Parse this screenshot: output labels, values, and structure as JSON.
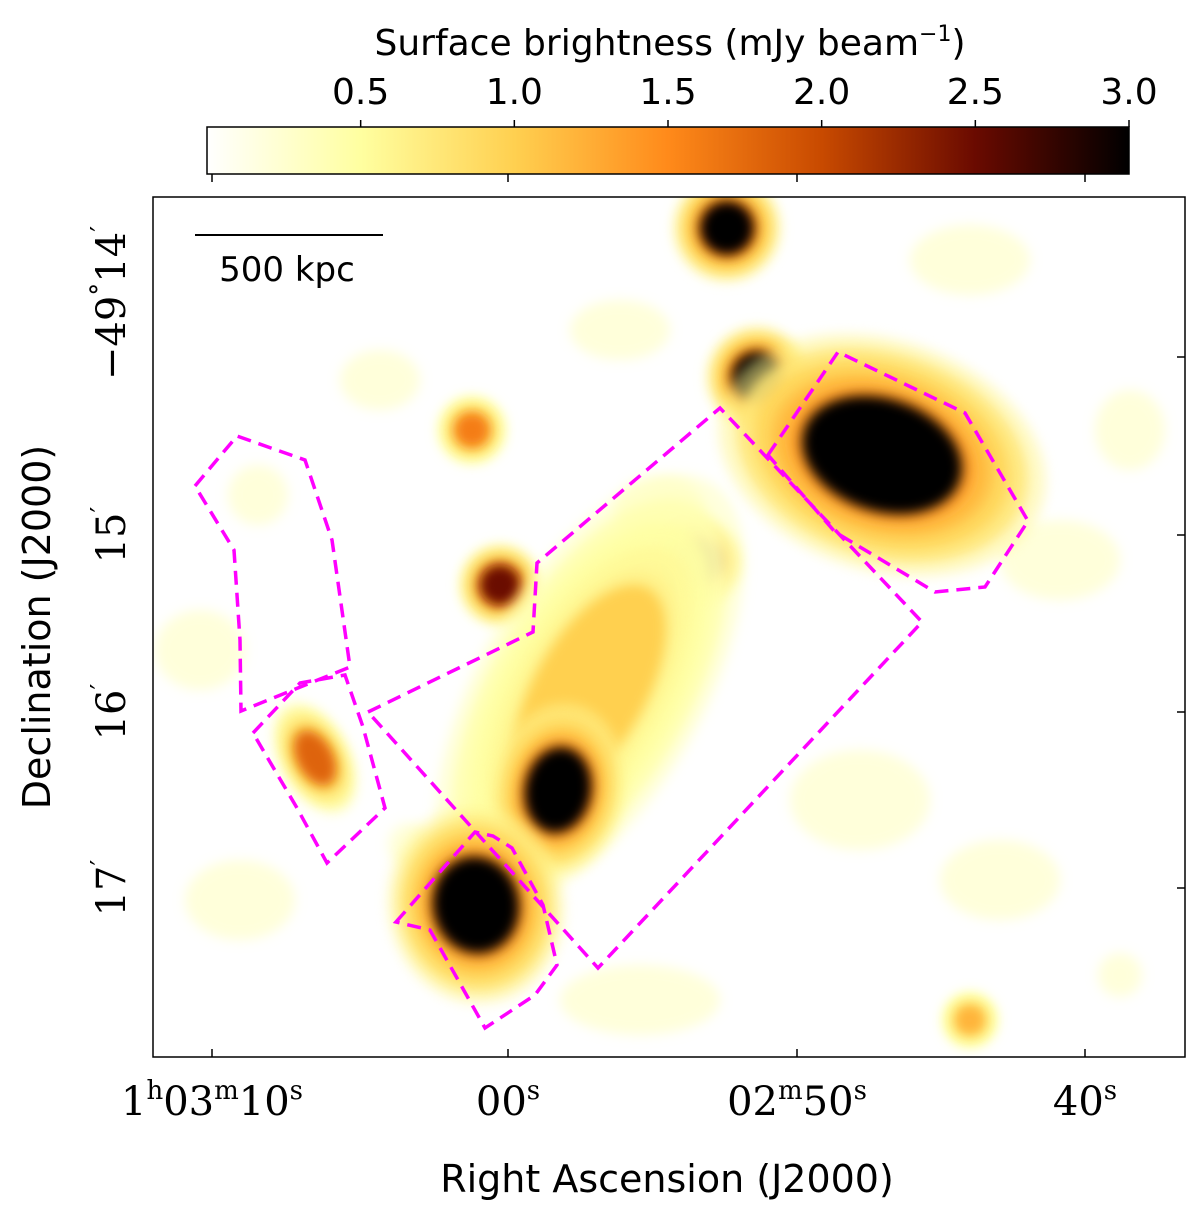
{
  "chart_data": {
    "type": "heatmap",
    "title": "",
    "xlabel": "Right Ascension (J2000)",
    "ylabel": "Declination (J2000)",
    "x_ticks": [
      {
        "h": "1",
        "m": "03",
        "s": "10",
        "label": "1h03m10s"
      },
      {
        "s": "00",
        "label": "00s"
      },
      {
        "m": "02",
        "s": "50",
        "label": "02m50s"
      },
      {
        "s": "40",
        "label": "40s"
      }
    ],
    "y_ticks": [
      {
        "label": "−49°14′",
        "deg": "−49",
        "min": "14"
      },
      {
        "label": "15′",
        "min": "15"
      },
      {
        "label": "16′",
        "min": "16"
      },
      {
        "label": "17′",
        "min": "17"
      }
    ],
    "colorbar": {
      "label_main": "Surface brightness (mJy beam",
      "label_sup": "−1",
      "label_close": ")",
      "vmin": 0.0,
      "vmax": 3.0,
      "ticks": [
        "0.5",
        "1.0",
        "1.5",
        "2.0",
        "2.5",
        "3.0"
      ],
      "colormap": "afmhot_r",
      "colors": [
        "#ffffff",
        "#ffffa0",
        "#ffd050",
        "#ff8a1a",
        "#c84a00",
        "#6a0a00",
        "#000000"
      ]
    },
    "scale_bar": {
      "label": "500 kpc"
    },
    "region_color": "#ff00ff",
    "sources": [
      {
        "name": "compact source north",
        "peak": 3.0
      },
      {
        "name": "compact source upper-middle",
        "peak": 3.0
      },
      {
        "name": "extended source north-west",
        "peak": 3.0
      },
      {
        "name": "compact source west-center",
        "peak": 2.6
      },
      {
        "name": "compact source center-left",
        "peak": 2.5
      },
      {
        "name": "faint source upper-left",
        "peak": 1.6
      },
      {
        "name": "diffuse bridge emission",
        "peak": 1.0
      },
      {
        "name": "compact source center",
        "peak": 3.0
      },
      {
        "name": "extended source south",
        "peak": 3.0
      },
      {
        "name": "elongated source east",
        "peak": 1.8
      },
      {
        "name": "faint source south-west corner",
        "peak": 1.2
      }
    ],
    "regions": [
      {
        "name": "east relic region"
      },
      {
        "name": "east compact region"
      },
      {
        "name": "central rectangular region"
      },
      {
        "name": "north-west region"
      },
      {
        "name": "south region"
      }
    ]
  }
}
